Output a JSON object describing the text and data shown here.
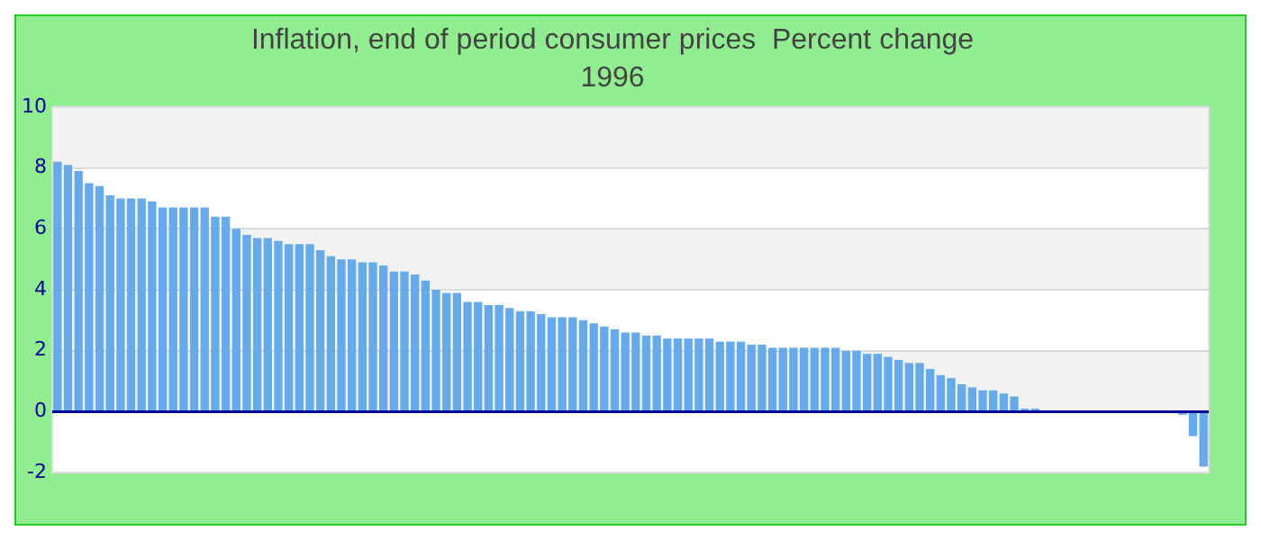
{
  "chart_data": {
    "type": "bar",
    "title": "Inflation, end of period consumer prices  Percent change",
    "subtitle": "1996",
    "categories": [
      null,
      null,
      null,
      null,
      null,
      null,
      null,
      null,
      null,
      null,
      null,
      null,
      null,
      null,
      null,
      null,
      null,
      null,
      null,
      null,
      null,
      null,
      null,
      null,
      null,
      null,
      null,
      null,
      null,
      null,
      null,
      null,
      null,
      null,
      null,
      null,
      null,
      null,
      null,
      null,
      null,
      null,
      null,
      null,
      null,
      null,
      null,
      null,
      null,
      null,
      null,
      null,
      null,
      null,
      null,
      null,
      null,
      null,
      null,
      null,
      null,
      null,
      null,
      null,
      null,
      null,
      null,
      null,
      null,
      null,
      null,
      null,
      null,
      null,
      null,
      null,
      null,
      null,
      null,
      null,
      null,
      null,
      null,
      null,
      null,
      null,
      null,
      null,
      null,
      null,
      null,
      null,
      null,
      null,
      null,
      null,
      null,
      null,
      null,
      null,
      null,
      null,
      null,
      null,
      null,
      null,
      null,
      null,
      null,
      null
    ],
    "values": [
      8.2,
      8.1,
      7.9,
      7.5,
      7.4,
      7.1,
      7.0,
      7.0,
      7.0,
      6.9,
      6.7,
      6.7,
      6.7,
      6.7,
      6.7,
      6.4,
      6.4,
      6.0,
      5.8,
      5.7,
      5.7,
      5.6,
      5.5,
      5.5,
      5.5,
      5.3,
      5.1,
      5.0,
      5.0,
      4.9,
      4.9,
      4.8,
      4.6,
      4.6,
      4.5,
      4.3,
      4.0,
      3.9,
      3.9,
      3.6,
      3.6,
      3.5,
      3.5,
      3.4,
      3.3,
      3.3,
      3.2,
      3.1,
      3.1,
      3.1,
      3.0,
      2.9,
      2.8,
      2.7,
      2.6,
      2.6,
      2.5,
      2.5,
      2.4,
      2.4,
      2.4,
      2.4,
      2.4,
      2.3,
      2.3,
      2.3,
      2.2,
      2.2,
      2.1,
      2.1,
      2.1,
      2.1,
      2.1,
      2.1,
      2.1,
      2.0,
      2.0,
      1.9,
      1.9,
      1.8,
      1.7,
      1.6,
      1.6,
      1.4,
      1.2,
      1.1,
      0.9,
      0.8,
      0.7,
      0.7,
      0.6,
      0.5,
      0.1,
      0.1,
      0,
      0,
      0,
      0,
      0,
      0,
      0,
      0,
      0,
      0,
      0,
      0,
      0,
      -0.1,
      -0.8,
      -1.8
    ],
    "color": "#66aaee",
    "ylim": [
      -2,
      10
    ],
    "yticks": [
      -2,
      0,
      2,
      4,
      6,
      8,
      10
    ],
    "grid": "y",
    "legend": false,
    "ref_lines": [
      {
        "axis": "y",
        "value": 0,
        "color": "#000099"
      }
    ]
  }
}
